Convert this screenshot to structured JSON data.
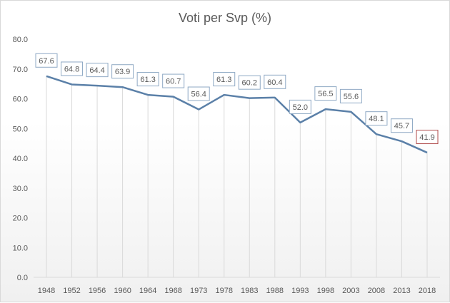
{
  "chart_data": {
    "type": "line",
    "title": "Voti per Svp (%)",
    "categories": [
      "1948",
      "1952",
      "1956",
      "1960",
      "1964",
      "1968",
      "1973",
      "1978",
      "1983",
      "1988",
      "1993",
      "1998",
      "2003",
      "2008",
      "2013",
      "2018"
    ],
    "series": [
      {
        "values": [
          67.6,
          64.8,
          64.4,
          63.9,
          61.3,
          60.7,
          56.4,
          61.3,
          60.2,
          60.4,
          52.0,
          56.5,
          55.6,
          48.1,
          45.7,
          41.9
        ]
      }
    ],
    "data_labels": [
      "67.6",
      "64.8",
      "64.4",
      "63.9",
      "61.3",
      "60.7",
      "56.4",
      "61.3",
      "60.2",
      "60.4",
      "52.0",
      "56.5",
      "55.6",
      "48.1",
      "45.7",
      "41.9"
    ],
    "yticks": [
      "0.0",
      "10.0",
      "20.0",
      "30.0",
      "40.0",
      "50.0",
      "60.0",
      "70.0",
      "80.0"
    ],
    "ylim": [
      0,
      80
    ],
    "grid": "vertical",
    "legend": "none",
    "colors": {
      "line": "#5b80a8",
      "label_border": "#8fa9c4",
      "highlight_border": "#b04a4a",
      "grid": "#d9d9d9",
      "text": "#595959"
    },
    "highlight_index": 15
  }
}
